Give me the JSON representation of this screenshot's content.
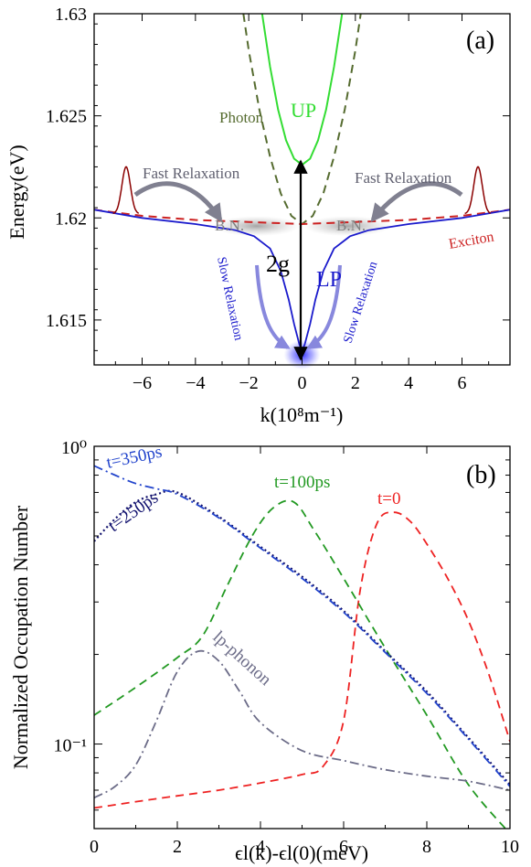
{
  "chart_data": [
    {
      "type": "line",
      "panel_label": "(a)",
      "xlabel": "k(10⁸m⁻¹)",
      "ylabel": "Energy(eV)",
      "xlim": [
        -7.8,
        7.8
      ],
      "ylim": [
        1.6128,
        1.63
      ],
      "x_ticks": [
        -6,
        -4,
        -2,
        0,
        2,
        4,
        6
      ],
      "x_tick_labels": [
        "−6",
        "−4",
        "−2",
        "0",
        "2",
        "4",
        "6"
      ],
      "y_ticks": [
        1.615,
        1.62,
        1.625,
        1.63
      ],
      "y_tick_labels": [
        "1.615",
        "1.62",
        "1.625",
        "1.63"
      ],
      "series": [
        {
          "name": "Photon",
          "style": "dashed",
          "color": "#556b2f",
          "x": [
            -2.2,
            -2.0,
            -1.6,
            -1.2,
            -0.8,
            -0.4,
            0,
            0.4,
            0.8,
            1.2,
            1.6,
            2.0,
            2.2
          ],
          "y": [
            1.63,
            1.6282,
            1.6253,
            1.623,
            1.6212,
            1.6201,
            1.6197,
            1.6201,
            1.6212,
            1.623,
            1.6253,
            1.6282,
            1.63
          ]
        },
        {
          "name": "UP",
          "style": "solid",
          "color": "#33dd33",
          "x": [
            -1.5,
            -1.2,
            -0.9,
            -0.6,
            -0.3,
            0,
            0.3,
            0.6,
            0.9,
            1.2,
            1.5
          ],
          "y": [
            1.63,
            1.6274,
            1.6253,
            1.6238,
            1.6229,
            1.6226,
            1.6229,
            1.6238,
            1.6253,
            1.6274,
            1.63
          ]
        },
        {
          "name": "Exciton",
          "style": "dashed",
          "color": "#cc2222",
          "x": [
            -7.8,
            -6,
            -4,
            -2,
            0,
            2,
            4,
            6,
            7.8
          ],
          "y": [
            1.6204,
            1.6201,
            1.6199,
            1.6198,
            1.6197,
            1.6198,
            1.6199,
            1.6201,
            1.6204
          ]
        },
        {
          "name": "LP",
          "style": "solid",
          "color": "#1a1acc",
          "x": [
            -7.8,
            -6,
            -4,
            -2.5,
            -1.8,
            -1.2,
            -0.8,
            -0.5,
            -0.3,
            -0.1,
            0,
            0.1,
            0.3,
            0.5,
            0.8,
            1.2,
            1.8,
            2.5,
            4,
            6,
            7.8
          ],
          "y": [
            1.6204,
            1.62,
            1.6197,
            1.6194,
            1.6191,
            1.6185,
            1.6174,
            1.616,
            1.6148,
            1.6138,
            1.6135,
            1.6138,
            1.6148,
            1.616,
            1.6174,
            1.6185,
            1.6191,
            1.6194,
            1.6197,
            1.62,
            1.6204
          ]
        }
      ],
      "bumps": [
        {
          "side": "left",
          "center_k": -6.6,
          "base": 1.6202,
          "peak": 1.6225,
          "color": "#8b0000"
        },
        {
          "side": "right",
          "center_k": 6.6,
          "base": 1.6202,
          "peak": 1.6225,
          "color": "#8b0000"
        }
      ],
      "annotations": {
        "photon": "Photon",
        "up": "UP",
        "lp": "LP",
        "exciton": "Exciton",
        "fast_left": "Fast Relaxation",
        "fast_right": "Fast Relaxation",
        "bn_left": "B.N.",
        "bn_right": "B.N.",
        "two_g": "2g",
        "slow_left": "Slow Relaxation",
        "slow_right": "Slow Relaxation"
      }
    },
    {
      "type": "line",
      "panel_label": "(b)",
      "xlabel": "ϵl(k)-ϵl(0)(meV)",
      "ylabel": "Normalized Occupation Number",
      "log_y": true,
      "xlim": [
        0,
        10
      ],
      "ylim": [
        0.052,
        1.0
      ],
      "x_ticks": [
        0,
        2,
        4,
        6,
        8,
        10
      ],
      "x_tick_labels": [
        "0",
        "2",
        "4",
        "6",
        "8",
        "10"
      ],
      "y_major_ticks": [
        0.1,
        1.0
      ],
      "y_tick_labels": [
        "10⁻¹",
        "10⁰"
      ],
      "series": [
        {
          "name": "t=0",
          "style": "dashed",
          "color": "#ee2222",
          "x": [
            0,
            1,
            2,
            3,
            4,
            5,
            5.5,
            6.0,
            6.4,
            6.8,
            7.2,
            7.6,
            8.0,
            8.5,
            9.0,
            9.5,
            10
          ],
          "y": [
            0.061,
            0.064,
            0.067,
            0.07,
            0.074,
            0.079,
            0.084,
            0.12,
            0.33,
            0.55,
            0.6,
            0.56,
            0.47,
            0.36,
            0.26,
            0.17,
            0.102
          ]
        },
        {
          "name": "t=100ps",
          "style": "dashed",
          "color": "#229922",
          "x": [
            0,
            1,
            2,
            2.6,
            3.2,
            3.8,
            4.3,
            4.8,
            5.3,
            6,
            7,
            8,
            9,
            10
          ],
          "y": [
            0.125,
            0.155,
            0.195,
            0.23,
            0.34,
            0.5,
            0.62,
            0.65,
            0.52,
            0.36,
            0.21,
            0.125,
            0.073,
            0.05
          ]
        },
        {
          "name": "t=250ps",
          "style": "dotted",
          "color": "#11116e",
          "x": [
            0,
            0.5,
            1,
            1.5,
            2,
            3,
            4,
            5,
            6,
            7,
            8,
            9,
            10
          ],
          "y": [
            0.48,
            0.57,
            0.65,
            0.69,
            0.7,
            0.58,
            0.46,
            0.365,
            0.28,
            0.205,
            0.15,
            0.105,
            0.073
          ]
        },
        {
          "name": "t=350ps",
          "style": "dashdot",
          "color": "#2244cc",
          "x": [
            0,
            0.5,
            1,
            1.5,
            2,
            3,
            4,
            5,
            6,
            7,
            8,
            9,
            10
          ],
          "y": [
            0.86,
            0.8,
            0.75,
            0.72,
            0.69,
            0.575,
            0.455,
            0.36,
            0.277,
            0.203,
            0.148,
            0.104,
            0.072
          ]
        },
        {
          "name": "lp-phonon",
          "style": "dashdot",
          "color": "#6c6c88",
          "x": [
            0,
            0.5,
            1,
            1.5,
            2.0,
            2.5,
            3,
            3.5,
            4,
            5,
            6,
            7,
            8,
            9,
            10
          ],
          "y": [
            0.066,
            0.072,
            0.085,
            0.12,
            0.175,
            0.205,
            0.19,
            0.15,
            0.118,
            0.095,
            0.088,
            0.082,
            0.078,
            0.075,
            0.07
          ]
        }
      ]
    }
  ]
}
